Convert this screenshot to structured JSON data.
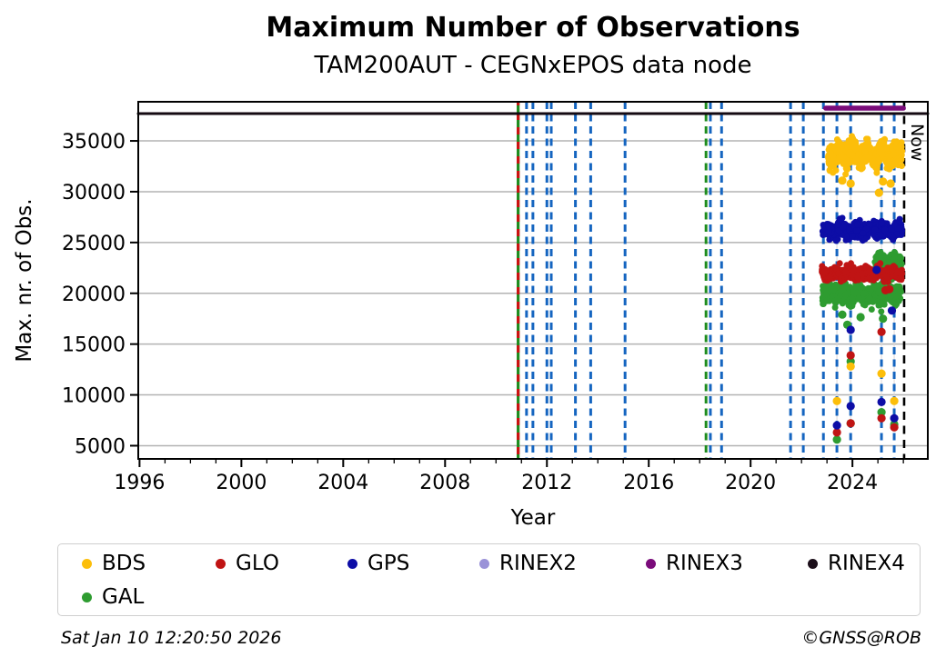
{
  "header": {
    "title": "Maximum Number of Observations",
    "subtitle": "TAM200AUT - CEGNxEPOS data node"
  },
  "footer": {
    "timestamp": "Sat Jan 10 12:20:50 2026",
    "credit": "©GNSS@ROB"
  },
  "chart_data": {
    "type": "scatter",
    "title": "Maximum Number of Observations",
    "subtitle": "TAM200AUT - CEGNxEPOS data node",
    "xlabel": "Year",
    "ylabel": "Max. nr. of Obs.",
    "xlim": [
      1995.95,
      2026.96
    ],
    "ylim": [
      3700,
      38850
    ],
    "xticks": [
      1996,
      2000,
      2004,
      2008,
      2012,
      2016,
      2020,
      2024
    ],
    "yticks": [
      5000,
      10000,
      15000,
      20000,
      25000,
      30000,
      35000
    ],
    "grid": "horizontal-gray",
    "grid_color": "#b3b3b3",
    "now_marker": {
      "x": 2026.03,
      "label": "Now",
      "color": "#000000"
    },
    "rinex_lines": [
      {
        "name": "RINEX4",
        "x": [
          1995.95,
          2026.96
        ],
        "y": 37690,
        "color": "#140a12",
        "width": 3
      },
      {
        "name": "RINEX3",
        "x": [
          2022.95,
          2026.0
        ],
        "y": 38220,
        "color": "#7a0b7a",
        "width": 5.5
      }
    ],
    "event_lines": [
      {
        "x": 2010.87,
        "style": "red-green"
      },
      {
        "x": 2011.2,
        "color": "#1565c0"
      },
      {
        "x": 2011.45,
        "color": "#1565c0"
      },
      {
        "x": 2012.0,
        "color": "#1565c0"
      },
      {
        "x": 2012.17,
        "color": "#1565c0"
      },
      {
        "x": 2013.12,
        "color": "#1565c0"
      },
      {
        "x": 2013.72,
        "color": "#1565c0"
      },
      {
        "x": 2015.07,
        "color": "#1565c0"
      },
      {
        "x": 2018.25,
        "color": "#1e8c1e"
      },
      {
        "x": 2018.42,
        "color": "#1565c0"
      },
      {
        "x": 2018.86,
        "color": "#1565c0"
      },
      {
        "x": 2021.57,
        "color": "#1565c0"
      },
      {
        "x": 2022.07,
        "color": "#1565c0"
      },
      {
        "x": 2022.86,
        "color": "#1565c0"
      },
      {
        "x": 2023.39,
        "color": "#1565c0"
      },
      {
        "x": 2023.93,
        "color": "#1565c0"
      },
      {
        "x": 2025.14,
        "color": "#1565c0"
      },
      {
        "x": 2025.64,
        "color": "#1565c0"
      }
    ],
    "event_line_colors": {
      "blue": "#1565c0",
      "green": "#1e8c1e",
      "red": "#cc1111"
    },
    "dropline_columns": [
      2023.39,
      2023.93,
      2025.14,
      2025.64
    ],
    "series": [
      {
        "name": "GAL",
        "color": "#2e9c30",
        "clusters": [
          {
            "x": [
              2022.82,
              2025.9
            ],
            "y_center": 19900,
            "y_sd": 620,
            "y_min": 17850,
            "y_max": 21350,
            "n": 520,
            "seed": 11
          },
          {
            "x": [
              2024.88,
              2025.93
            ],
            "y_center": 23250,
            "y_sd": 360,
            "y_min": 22450,
            "y_max": 24050,
            "n": 140,
            "seed": 12
          }
        ],
        "outliers": [
          [
            2023.39,
            5600
          ],
          [
            2023.93,
            13300
          ],
          [
            2023.93,
            7200
          ],
          [
            2025.14,
            8300
          ],
          [
            2025.64,
            7100
          ],
          [
            2024.32,
            17650
          ],
          [
            2025.2,
            17500
          ],
          [
            2023.8,
            16900
          ],
          [
            2023.6,
            17900
          ]
        ]
      },
      {
        "name": "GLO",
        "color": "#c01414",
        "clusters": [
          {
            "x": [
              2022.8,
              2025.95
            ],
            "y_center": 21950,
            "y_sd": 380,
            "y_min": 20850,
            "y_max": 22950,
            "n": 520,
            "seed": 21
          }
        ],
        "outliers": [
          [
            2023.39,
            6300
          ],
          [
            2023.93,
            13900
          ],
          [
            2023.93,
            7200
          ],
          [
            2025.14,
            16200
          ],
          [
            2025.14,
            7700
          ],
          [
            2025.64,
            6800
          ],
          [
            2025.45,
            20400
          ],
          [
            2025.3,
            20300
          ]
        ]
      },
      {
        "name": "GPS",
        "color": "#0d0da6",
        "clusters": [
          {
            "x": [
              2022.83,
              2025.95
            ],
            "y_center": 26150,
            "y_sd": 480,
            "y_min": 24400,
            "y_max": 27450,
            "n": 520,
            "seed": 31
          }
        ],
        "outliers": [
          [
            2023.39,
            7000
          ],
          [
            2023.93,
            16400
          ],
          [
            2023.93,
            8900
          ],
          [
            2025.14,
            9300
          ],
          [
            2025.64,
            7700
          ],
          [
            2024.95,
            22300
          ],
          [
            2025.55,
            18300
          ]
        ]
      },
      {
        "name": "BDS",
        "color": "#fcbe0a",
        "clusters": [
          {
            "x": [
              2023.05,
              2025.95
            ],
            "y_center": 33700,
            "y_sd": 750,
            "y_min": 31700,
            "y_max": 35850,
            "n": 700,
            "seed": 41
          }
        ],
        "outliers": [
          [
            2023.39,
            9400
          ],
          [
            2023.93,
            12800
          ],
          [
            2025.14,
            12100
          ],
          [
            2025.64,
            9400
          ],
          [
            2025.04,
            29900
          ],
          [
            2023.6,
            31100
          ],
          [
            2023.93,
            30800
          ],
          [
            2025.2,
            31000
          ],
          [
            2025.5,
            30800
          ]
        ]
      }
    ],
    "legend": {
      "position": "bottom",
      "items": [
        {
          "label": "BDS",
          "color": "#fcbe0a"
        },
        {
          "label": "GLO",
          "color": "#c01414"
        },
        {
          "label": "GPS",
          "color": "#0d0da6"
        },
        {
          "label": "RINEX2",
          "color": "#9a92d8"
        },
        {
          "label": "RINEX3",
          "color": "#7a0b7a"
        },
        {
          "label": "RINEX4",
          "color": "#1c0f1a"
        },
        {
          "label": "GAL",
          "color": "#2e9c30"
        }
      ]
    }
  }
}
